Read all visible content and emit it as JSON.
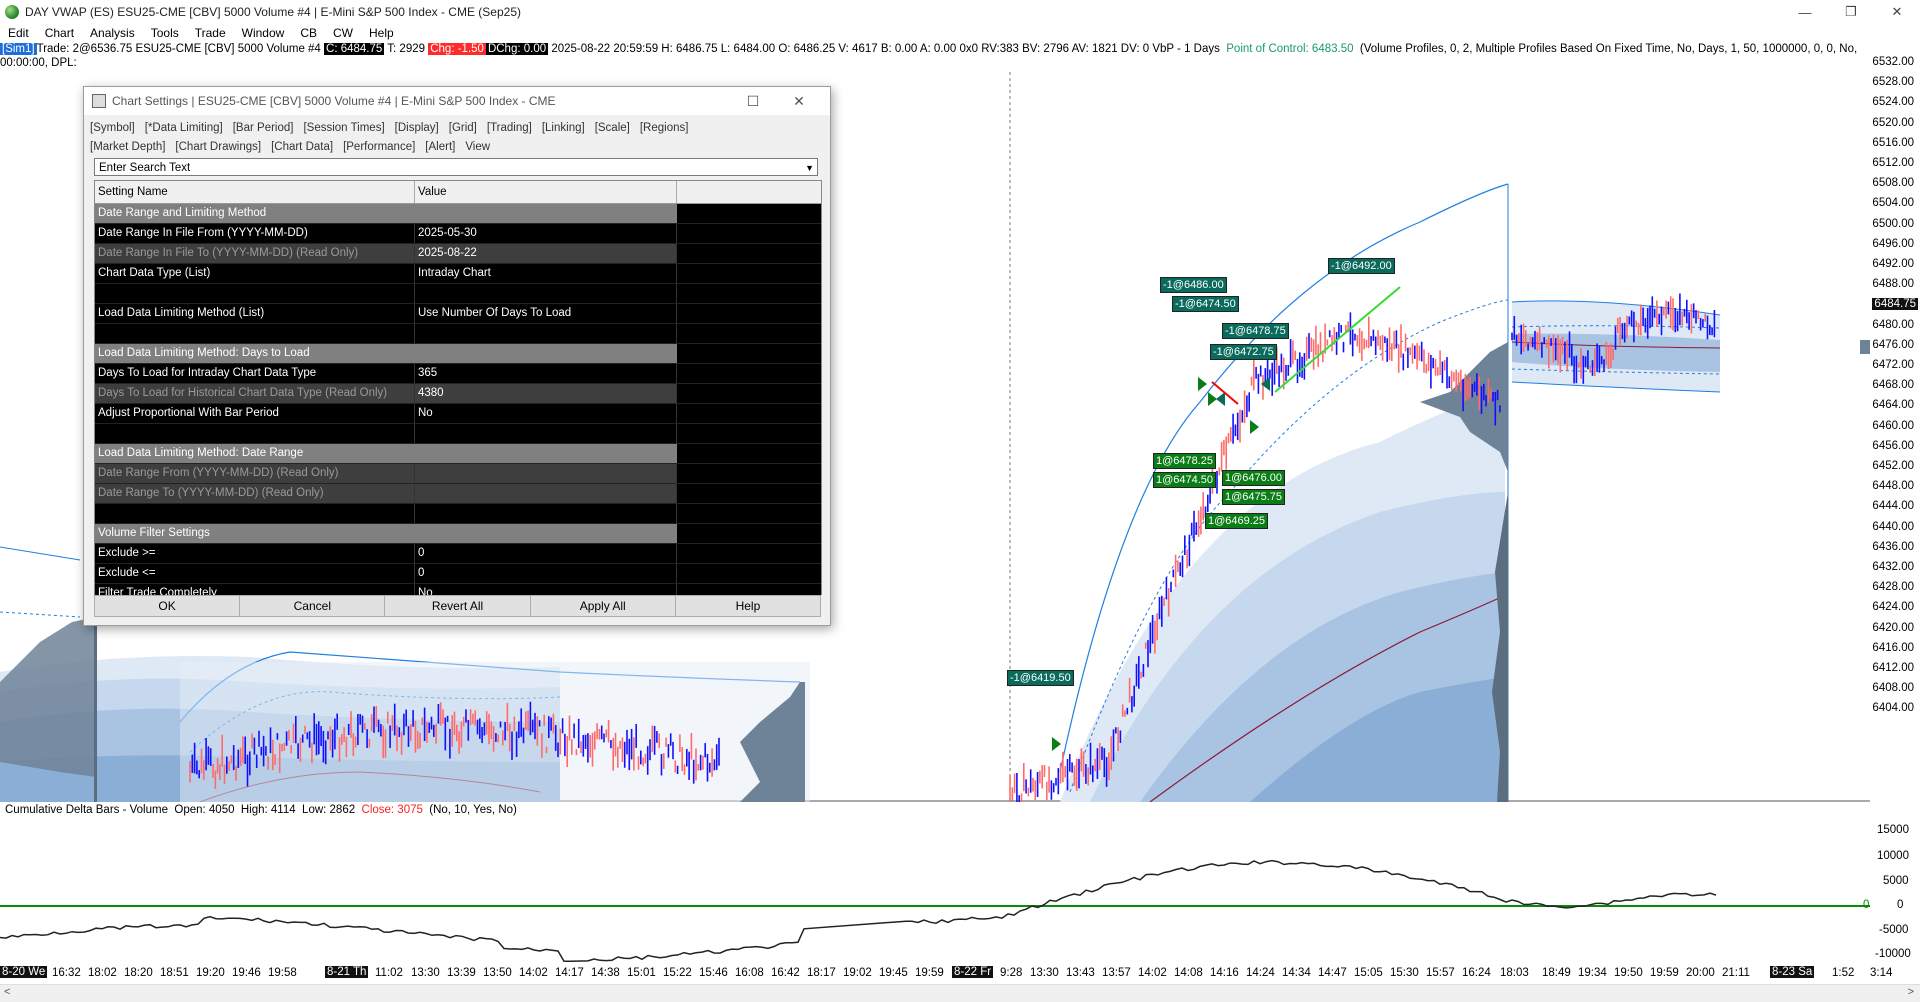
{
  "window": {
    "title": "DAY VWAP (ES) ESU25-CME [CBV]  5000 Volume #4 | E-Mini S&P 500 Index - CME (Sep25)",
    "minimize": "—",
    "maximize": "❐",
    "close": "✕"
  },
  "menu": [
    "Edit",
    "Chart",
    "Analysis",
    "Tools",
    "Trade",
    "Window",
    "CB",
    "CW",
    "Help"
  ],
  "info": {
    "sim": "[Sim1]",
    "trade": "Trade: 2@6536.75",
    "symbol": "ESU25-CME [CBV]  5000 Volume #4",
    "c": "C: 6484.75",
    "t": "T: 2929",
    "chg": "Chg: -1.50",
    "dchg": "DChg: 0.00",
    "stats": "2025-08-22 20:59:59 H: 6486.75 L: 6484.00 O: 6486.25 V: 4617 B: 0.00 A: 0.00 0x0 RV:383 BV: 2796 AV: 1821 DV: 0 VbP - 1 Days",
    "poc": "Point of Control: 6483.50",
    "vp": "(Volume Profiles, 0, 2, Multiple Profiles Based On Fixed Time, No, Days, 1, 50, 1000000, 0, 0, No, 00:00:00,",
    "dpl": "DPL:"
  },
  "yaxis": {
    "labels": [
      "6532.00",
      "6528.00",
      "6524.00",
      "6520.00",
      "6516.00",
      "6512.00",
      "6508.00",
      "6504.00",
      "6500.00",
      "6496.00",
      "6492.00",
      "6488.00",
      "6484.75",
      "6480.00",
      "6476.00",
      "6472.00",
      "6468.00",
      "6464.00",
      "6460.00",
      "6456.00",
      "6452.00",
      "6448.00",
      "6444.00",
      "6440.00",
      "6436.00",
      "6432.00",
      "6428.00",
      "6424.00",
      "6420.00",
      "6416.00",
      "6412.00",
      "6408.00",
      "6404.00"
    ],
    "last_price": "6484.75"
  },
  "trade_labels": [
    {
      "text": "-1@6486.00",
      "kind": "sell"
    },
    {
      "text": "-1@6474.50",
      "kind": "sell"
    },
    {
      "text": "-1@6478.75",
      "kind": "sell"
    },
    {
      "text": "-1@6472.75",
      "kind": "sell"
    },
    {
      "text": "-1@6492.00",
      "kind": "sell"
    },
    {
      "text": "1@6478.25",
      "kind": "buy"
    },
    {
      "text": "1@6474.50",
      "kind": "buy"
    },
    {
      "text": "1@6476.00",
      "kind": "buy"
    },
    {
      "text": "1@6475.75",
      "kind": "buy"
    },
    {
      "text": "1@6469.25",
      "kind": "buy"
    },
    {
      "text": "-1@6419.50",
      "kind": "sell"
    }
  ],
  "dialog": {
    "title": "Chart Settings | ESU25-CME [CBV]  5000 Volume #4 | E-Mini S&P 500 Index - CME",
    "tabs_row1": [
      "[Symbol]",
      "[*Data Limiting]",
      "[Bar Period]",
      "[Session Times]",
      "[Display]",
      "[Grid]",
      "[Trading]",
      "[Linking]",
      "[Scale]",
      "[Regions]"
    ],
    "tabs_row2": [
      "[Market Depth]",
      "[Chart Drawings]",
      "[Chart Data]",
      "[Performance]",
      "[Alert]",
      "View"
    ],
    "search_placeholder": "Enter Search Text",
    "col_name": "Setting Name",
    "col_value": "Value",
    "rows": [
      {
        "type": "section",
        "name": "Date Range and Limiting Method",
        "value": ""
      },
      {
        "type": "normal",
        "name": "Date Range In File From (YYYY-MM-DD)",
        "value": "2025-05-30"
      },
      {
        "type": "readonly",
        "name": "Date Range In File To (YYYY-MM-DD) (Read Only)",
        "value": "2025-08-22"
      },
      {
        "type": "normal",
        "name": "Chart Data Type (List)",
        "value": "Intraday Chart"
      },
      {
        "type": "blank",
        "name": "",
        "value": ""
      },
      {
        "type": "normal",
        "name": "Load Data Limiting Method (List)",
        "value": "Use Number Of Days To Load"
      },
      {
        "type": "blank",
        "name": "",
        "value": ""
      },
      {
        "type": "section",
        "name": "Load Data Limiting Method: Days to Load",
        "value": ""
      },
      {
        "type": "normal",
        "name": "Days To Load for Intraday Chart Data Type",
        "value": "365"
      },
      {
        "type": "readonly",
        "name": "Days To Load for Historical Chart Data Type (Read Only)",
        "value": "4380"
      },
      {
        "type": "normal",
        "name": "Adjust Proportional With Bar Period",
        "value": "No"
      },
      {
        "type": "blank",
        "name": "",
        "value": ""
      },
      {
        "type": "section",
        "name": "Load Data Limiting Method: Date Range",
        "value": ""
      },
      {
        "type": "readonly",
        "name": "Date Range From (YYYY-MM-DD) (Read Only)",
        "value": ""
      },
      {
        "type": "readonly",
        "name": "Date Range To (YYYY-MM-DD) (Read Only)",
        "value": ""
      },
      {
        "type": "blank",
        "name": "",
        "value": ""
      },
      {
        "type": "section",
        "name": "Volume Filter Settings",
        "value": ""
      },
      {
        "type": "normal",
        "name": "Exclude >=",
        "value": "0"
      },
      {
        "type": "normal",
        "name": "Exclude <=",
        "value": "0"
      },
      {
        "type": "normal",
        "name": "Filter Trade Completely",
        "value": "No"
      }
    ],
    "buttons": [
      "OK",
      "Cancel",
      "Revert All",
      "Apply All",
      "Help"
    ]
  },
  "study": {
    "name": "Cumulative Delta Bars - Volume",
    "open": "Open: 4050",
    "high": "High: 4114",
    "low": "Low: 2862",
    "close": "Close: 3075",
    "params": "(No, 10, Yes, No)",
    "axis": [
      "15000",
      "10000",
      "5000",
      "0",
      "-5000",
      "-10000"
    ],
    "zero_label": "0"
  },
  "xaxis": {
    "labels": [
      {
        "t": "8-20 We",
        "box": true
      },
      {
        "t": "16:32"
      },
      {
        "t": "18:02"
      },
      {
        "t": "18:20"
      },
      {
        "t": "18:51"
      },
      {
        "t": "19:20"
      },
      {
        "t": "19:46"
      },
      {
        "t": "19:58"
      },
      {
        "t": "8-21 Th",
        "box": true
      },
      {
        "t": "11:02"
      },
      {
        "t": "13:30"
      },
      {
        "t": "13:39"
      },
      {
        "t": "13:50"
      },
      {
        "t": "14:02"
      },
      {
        "t": "14:17"
      },
      {
        "t": "14:38"
      },
      {
        "t": "15:01"
      },
      {
        "t": "15:22"
      },
      {
        "t": "15:46"
      },
      {
        "t": "16:08"
      },
      {
        "t": "16:42"
      },
      {
        "t": "18:17"
      },
      {
        "t": "19:02"
      },
      {
        "t": "19:45"
      },
      {
        "t": "19:59"
      },
      {
        "t": "8-22 Fr",
        "box": true
      },
      {
        "t": "9:28"
      },
      {
        "t": "13:30"
      },
      {
        "t": "13:43"
      },
      {
        "t": "13:57"
      },
      {
        "t": "14:02"
      },
      {
        "t": "14:08"
      },
      {
        "t": "14:16"
      },
      {
        "t": "14:24"
      },
      {
        "t": "14:34"
      },
      {
        "t": "14:47"
      },
      {
        "t": "15:05"
      },
      {
        "t": "15:30"
      },
      {
        "t": "15:57"
      },
      {
        "t": "16:24"
      },
      {
        "t": "18:03"
      },
      {
        "t": "18:49"
      },
      {
        "t": "19:34"
      },
      {
        "t": "19:50"
      },
      {
        "t": "19:59"
      },
      {
        "t": "20:00"
      },
      {
        "t": "21:11"
      },
      {
        "t": "8-23 Sa",
        "box": true
      },
      {
        "t": "1:52"
      },
      {
        "t": "3:14"
      }
    ]
  },
  "colors": {
    "up_bar": "#1010ff",
    "down_bar": "#ff6b6b",
    "vwap_line": "#1e7fe0",
    "profile": "#6f8398",
    "zero_line": "#0a8a0a",
    "sim_bg": "#1e6fd9",
    "chg_bg": "#ff2a2a"
  }
}
